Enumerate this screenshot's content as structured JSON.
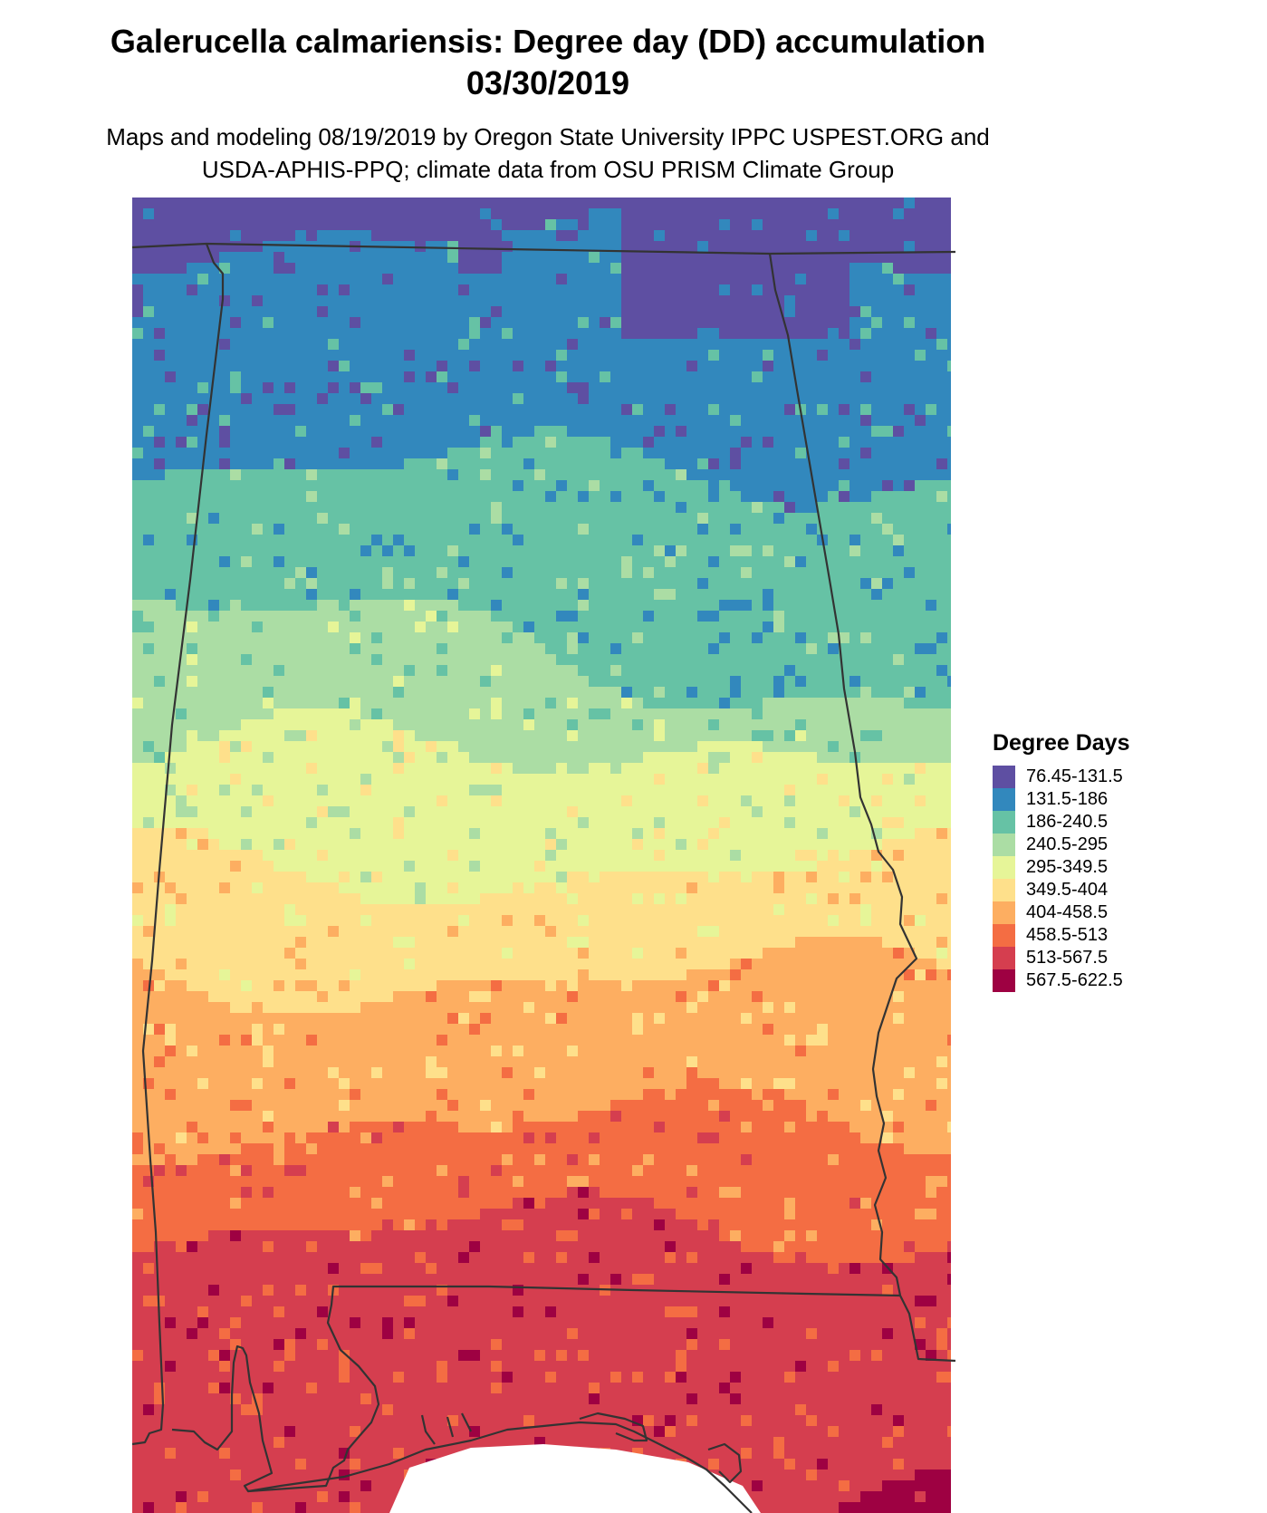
{
  "header": {
    "title_line1": "Galerucella calmariensis: Degree day (DD) accumulation",
    "title_line2": "03/30/2019",
    "subtitle_line1": "Maps and modeling 08/19/2019 by Oregon State University IPPC USPEST.ORG and",
    "subtitle_line2": "USDA-APHIS-PPQ; climate data from OSU PRISM Climate Group"
  },
  "legend": {
    "title": "Degree Days",
    "classes": [
      {
        "label": "76.45-131.5",
        "color": "#5e4fa2"
      },
      {
        "label": "131.5-186",
        "color": "#3288bd"
      },
      {
        "label": "186-240.5",
        "color": "#66c2a5"
      },
      {
        "label": "240.5-295",
        "color": "#abdda4"
      },
      {
        "label": "295-349.5",
        "color": "#e6f598"
      },
      {
        "label": "349.5-404",
        "color": "#fee08b"
      },
      {
        "label": "404-458.5",
        "color": "#fdae61"
      },
      {
        "label": "458.5-513",
        "color": "#f46d43"
      },
      {
        "label": "513-567.5",
        "color": "#d53e4f"
      },
      {
        "label": "567.5-622.5",
        "color": "#9e0142"
      }
    ]
  },
  "map": {
    "region": "Alabama",
    "border_color": "#333333"
  }
}
